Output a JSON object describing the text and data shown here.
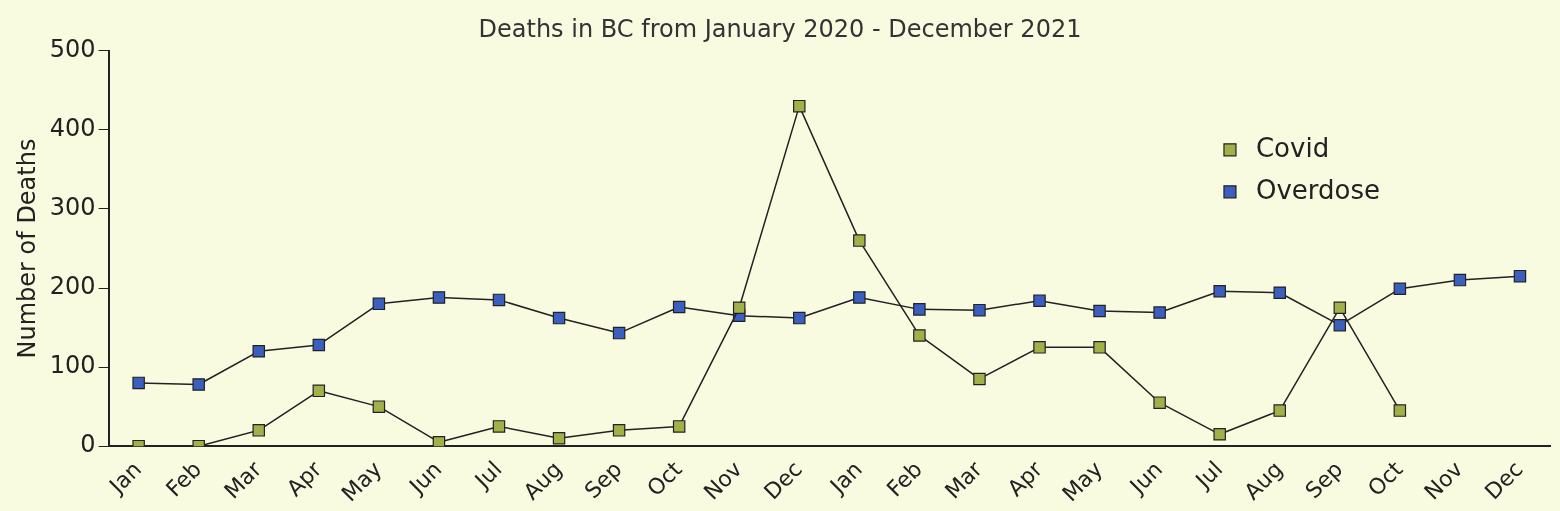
{
  "chart_data": {
    "type": "line",
    "title": "Deaths in BC from January 2020 - December 2021",
    "ylabel": "Number of Deaths",
    "categories": [
      "Jan",
      "Feb",
      "Mar",
      "Apr",
      "May",
      "Jun",
      "Jul",
      "Aug",
      "Sep",
      "Oct",
      "Nov",
      "Dec",
      "Jan",
      "Feb",
      "Mar",
      "Apr",
      "May",
      "Jun",
      "Jul",
      "Aug",
      "Sep",
      "Oct",
      "Nov",
      "Dec"
    ],
    "series": [
      {
        "name": "Covid",
        "color": "#a3b04a",
        "values": [
          0,
          0,
          20,
          70,
          50,
          5,
          25,
          10,
          20,
          25,
          175,
          430,
          260,
          140,
          85,
          125,
          125,
          55,
          15,
          45,
          175,
          45,
          null,
          null
        ]
      },
      {
        "name": "Overdose",
        "color": "#3b5fbf",
        "values": [
          80,
          78,
          120,
          128,
          180,
          188,
          185,
          162,
          143,
          176,
          165,
          162,
          188,
          173,
          172,
          184,
          171,
          169,
          196,
          194,
          153,
          199,
          210,
          215
        ]
      }
    ],
    "ylim": [
      0,
      500
    ],
    "yticks": [
      0,
      100,
      200,
      300,
      400,
      500
    ],
    "grid": false,
    "legend": "top right",
    "marker": "square",
    "line_style": "solid"
  }
}
